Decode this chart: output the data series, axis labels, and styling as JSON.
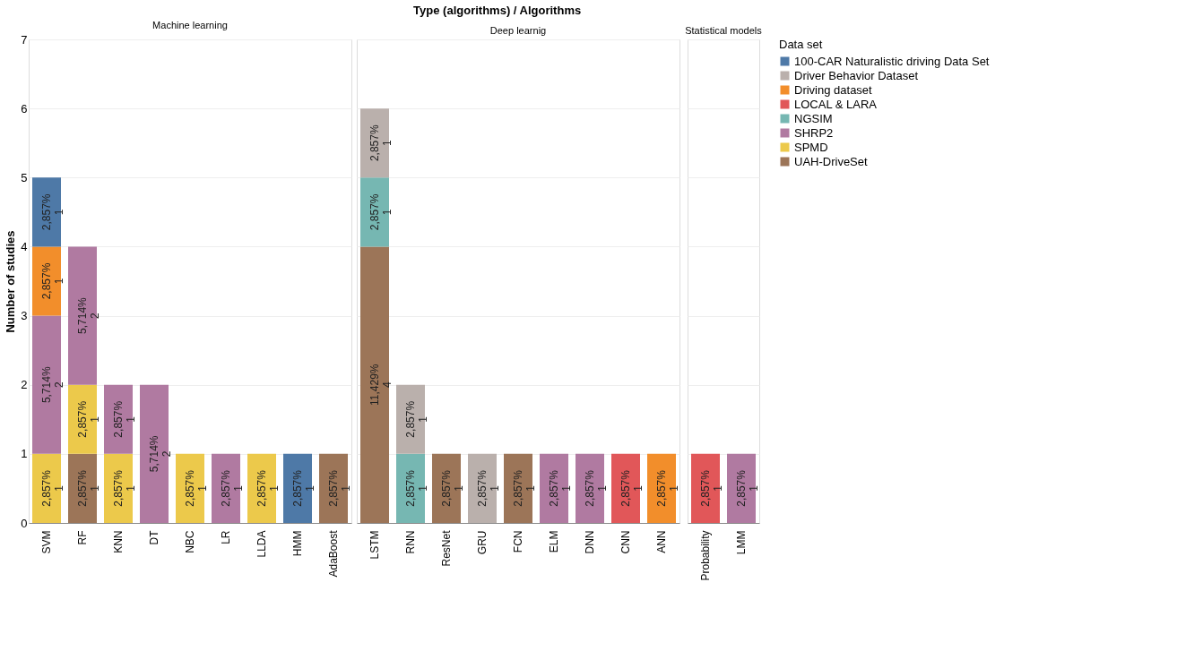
{
  "chart_data": [
    {
      "type": "bar",
      "title": "Machine learning",
      "ylabel": "Number of studies",
      "legend_title": "Data set",
      "legend": "right",
      "grid": "y",
      "stacked": true,
      "ylim": [
        0,
        7
      ],
      "yticks": [
        0,
        1,
        2,
        3,
        4,
        5,
        6,
        7
      ],
      "annotations": [
        "Type (algorithms)  /  Algorithms"
      ],
      "categories": [
        "SVM",
        "RF",
        "KNN",
        "DT",
        "NBC",
        "LR",
        "LLDA",
        "HMM",
        "AdaBoost"
      ],
      "series": [
        {
          "name": "UAH-DriveSet",
          "color": "#9c7558",
          "values": [
            null,
            1,
            null,
            null,
            null,
            null,
            null,
            null,
            1
          ],
          "value_labels": [
            null,
            "2,857%\n1",
            null,
            null,
            null,
            null,
            null,
            null,
            "2,857%\n1"
          ]
        },
        {
          "name": "SPMD",
          "color": "#ecc94b",
          "values": [
            1,
            1,
            1,
            null,
            1,
            null,
            1,
            null,
            null
          ],
          "value_labels": [
            "2,857%\n1",
            "2,857%\n1",
            "2,857%\n1",
            null,
            "2,857%\n1",
            null,
            "2,857%\n1",
            null,
            null
          ]
        },
        {
          "name": "SHRP2",
          "color": "#b07aa1",
          "values": [
            2,
            2,
            1,
            2,
            null,
            1,
            null,
            null,
            null
          ],
          "value_labels": [
            "5,714%\n2",
            "5,714%\n2",
            "2,857%\n1",
            "5,714%\n2",
            null,
            "2,857%\n1",
            null,
            null,
            null
          ]
        },
        {
          "name": "Driving dataset",
          "color": "#f28e2b",
          "values": [
            1,
            null,
            null,
            null,
            null,
            null,
            null,
            null,
            null
          ],
          "value_labels": [
            "2,857%\n1",
            null,
            null,
            null,
            null,
            null,
            null,
            null,
            null
          ]
        },
        {
          "name": "100-CAR Naturalistic driving Data Set",
          "color": "#4e79a7",
          "values": [
            1,
            null,
            null,
            null,
            null,
            null,
            null,
            1,
            null
          ],
          "value_labels": [
            "2,857%\n1",
            null,
            null,
            null,
            null,
            null,
            null,
            "2,857%\n1",
            null
          ]
        }
      ]
    },
    {
      "type": "bar",
      "title": "Deep learnig",
      "legend": "right",
      "grid": "y",
      "stacked": true,
      "ylim": [
        0,
        7
      ],
      "yticks": [
        0,
        1,
        2,
        3,
        4,
        5,
        6,
        7
      ],
      "tick_labels": "x",
      "categories": [
        "LSTM",
        "RNN",
        "ResNet",
        "GRU",
        "FCN",
        "ELM",
        "DNN",
        "CNN",
        "ANN"
      ],
      "series": [
        {
          "name": "UAH-DriveSet",
          "color": "#9c7558",
          "values": [
            4,
            null,
            1,
            null,
            1,
            null,
            null,
            null,
            null
          ],
          "value_labels": [
            "11,429%\n4",
            null,
            "2,857%\n1",
            null,
            "2,857%\n1",
            null,
            null,
            null,
            null
          ]
        },
        {
          "name": "SHRP2",
          "color": "#b07aa1",
          "values": [
            null,
            null,
            null,
            null,
            null,
            1,
            1,
            null,
            null
          ],
          "value_labels": [
            null,
            null,
            null,
            null,
            null,
            "2,857%\n1",
            "2,857%\n1",
            null,
            null
          ]
        },
        {
          "name": "NGSIM",
          "color": "#76b7b2",
          "values": [
            1,
            1,
            null,
            null,
            null,
            null,
            null,
            null,
            null
          ],
          "value_labels": [
            "2,857%\n1",
            "2,857%\n1",
            null,
            null,
            null,
            null,
            null,
            null,
            null
          ]
        },
        {
          "name": "Driving dataset",
          "color": "#f28e2b",
          "values": [
            null,
            null,
            null,
            null,
            null,
            null,
            null,
            null,
            1
          ],
          "value_labels": [
            null,
            null,
            null,
            null,
            null,
            null,
            null,
            null,
            "2,857%\n1"
          ]
        },
        {
          "name": "Driver Behavior Dataset",
          "color": "#bab0ac",
          "values": [
            1,
            1,
            null,
            1,
            null,
            null,
            null,
            null,
            null
          ],
          "value_labels": [
            "2,857%\n1",
            "2,857%\n1",
            null,
            "2,857%\n1",
            null,
            null,
            null,
            null,
            null
          ]
        },
        {
          "name": "LOCAL & LARA",
          "color": "#e15759",
          "values": [
            null,
            null,
            null,
            null,
            null,
            null,
            null,
            1,
            null
          ],
          "value_labels": [
            null,
            null,
            null,
            null,
            null,
            null,
            null,
            "2,857%\n1",
            null
          ]
        }
      ]
    },
    {
      "type": "bar",
      "title": "Statistical models",
      "legend": "right",
      "grid": "y",
      "stacked": true,
      "ylim": [
        0,
        7
      ],
      "yticks": [
        0,
        1,
        2,
        3,
        4,
        5,
        6,
        7
      ],
      "tick_labels": "x",
      "categories": [
        "Probability",
        "LMM"
      ],
      "series": [
        {
          "name": "SHRP2",
          "color": "#b07aa1",
          "values": [
            null,
            1
          ],
          "value_labels": [
            null,
            "2,857%\n1"
          ]
        },
        {
          "name": "LOCAL & LARA",
          "color": "#e15759",
          "values": [
            1,
            null
          ],
          "value_labels": [
            "2,857%\n1",
            null
          ]
        }
      ]
    }
  ]
}
